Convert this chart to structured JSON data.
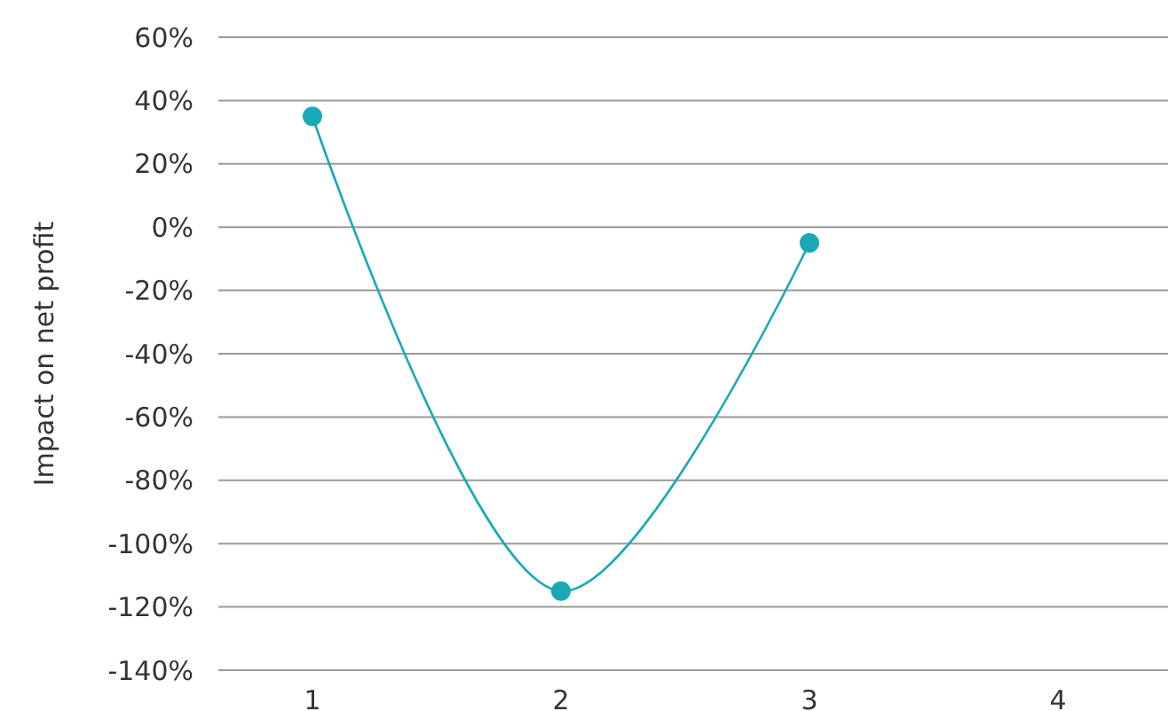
{
  "chart_data": {
    "type": "line",
    "ylabel": "Impact on net profit",
    "categories": [
      "1",
      "2",
      "3",
      "4"
    ],
    "series": [
      {
        "color": "#19a9b6",
        "values": [
          35,
          -115,
          -5,
          null
        ]
      }
    ],
    "ylim": [
      -140,
      60
    ],
    "yticks": [
      {
        "value": -140,
        "label": "-140%"
      },
      {
        "value": -120,
        "label": "-120%"
      },
      {
        "value": -100,
        "label": "-100%"
      },
      {
        "value": -80,
        "label": "-80%"
      },
      {
        "value": -60,
        "label": "-60%"
      },
      {
        "value": -40,
        "label": "-40%"
      },
      {
        "value": -20,
        "label": "-20%"
      },
      {
        "value": 0,
        "label": "0%"
      },
      {
        "value": 20,
        "label": "20%"
      },
      {
        "value": 40,
        "label": "40%"
      },
      {
        "value": 60,
        "label": "60%"
      }
    ],
    "grid": "y",
    "marker": "circle",
    "line_style": "solid"
  }
}
